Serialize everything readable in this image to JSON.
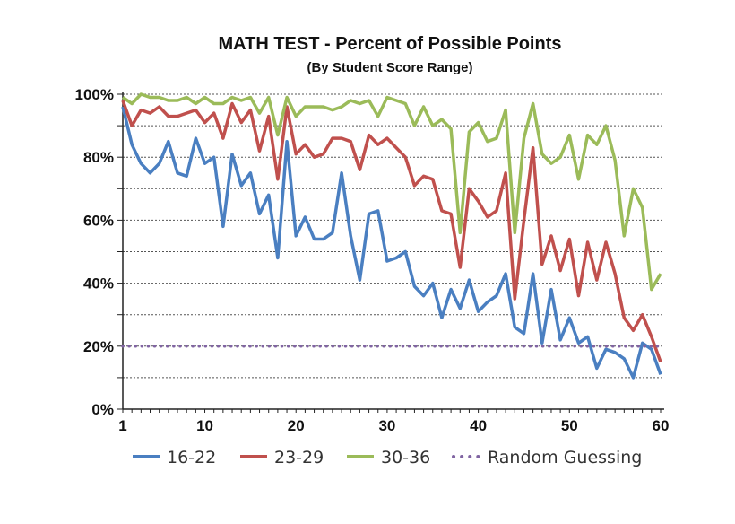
{
  "chart_data": {
    "type": "line",
    "title": "MATH TEST - Percent of Possible Points",
    "subtitle": "(By Student Score Range)",
    "xlabel": "",
    "ylabel": "",
    "xlim": [
      1,
      60
    ],
    "ylim": [
      0,
      100
    ],
    "grid": true,
    "legend_position": "bottom",
    "x_ticks": [
      1,
      10,
      20,
      30,
      40,
      50,
      60
    ],
    "y_ticks": [
      0,
      20,
      40,
      60,
      80,
      100
    ],
    "y_tick_labels": [
      "0%",
      "20%",
      "40%",
      "60%",
      "80%",
      "100%"
    ],
    "x": [
      1,
      2,
      3,
      4,
      5,
      6,
      7,
      8,
      9,
      10,
      11,
      12,
      13,
      14,
      15,
      16,
      17,
      18,
      19,
      20,
      21,
      22,
      23,
      24,
      25,
      26,
      27,
      28,
      29,
      30,
      31,
      32,
      33,
      34,
      35,
      36,
      37,
      38,
      39,
      40,
      41,
      42,
      43,
      44,
      45,
      46,
      47,
      48,
      49,
      50,
      51,
      52,
      53,
      54,
      55,
      56,
      57,
      58,
      59,
      60
    ],
    "series": [
      {
        "name": "16-22",
        "color": "#4a7fc1",
        "dotted": false,
        "values": [
          96,
          84,
          78,
          75,
          78,
          85,
          75,
          74,
          86,
          78,
          80,
          58,
          81,
          71,
          75,
          62,
          68,
          48,
          85,
          55,
          61,
          54,
          54,
          56,
          75,
          55,
          41,
          62,
          63,
          47,
          48,
          50,
          39,
          36,
          40,
          29,
          38,
          32,
          41,
          31,
          34,
          36,
          43,
          26,
          24,
          43,
          21,
          38,
          22,
          29,
          21,
          23,
          13,
          19,
          18,
          16,
          10,
          21,
          19,
          11
        ]
      },
      {
        "name": "23-29",
        "color": "#c0504d",
        "dotted": false,
        "values": [
          98,
          90,
          95,
          94,
          96,
          93,
          93,
          94,
          95,
          91,
          94,
          86,
          97,
          91,
          95,
          82,
          93,
          73,
          96,
          81,
          84,
          80,
          81,
          86,
          86,
          85,
          76,
          87,
          84,
          86,
          83,
          80,
          71,
          74,
          73,
          63,
          62,
          45,
          70,
          66,
          61,
          63,
          75,
          35,
          60,
          83,
          46,
          55,
          44,
          54,
          36,
          53,
          41,
          53,
          43,
          29,
          25,
          30,
          23,
          15
        ]
      },
      {
        "name": "30-36",
        "color": "#9bbb59",
        "dotted": false,
        "values": [
          99,
          97,
          100,
          99,
          99,
          98,
          98,
          99,
          97,
          99,
          97,
          97,
          99,
          98,
          99,
          94,
          99,
          87,
          99,
          93,
          96,
          96,
          96,
          95,
          96,
          98,
          97,
          98,
          93,
          99,
          98,
          97,
          90,
          96,
          90,
          92,
          89,
          56,
          88,
          91,
          85,
          86,
          95,
          56,
          86,
          97,
          81,
          78,
          80,
          87,
          73,
          87,
          84,
          90,
          79,
          55,
          70,
          64,
          38,
          43
        ]
      },
      {
        "name": "Random Guessing",
        "color": "#8064a2",
        "dotted": true,
        "values": [
          20,
          20,
          20,
          20,
          20,
          20,
          20,
          20,
          20,
          20,
          20,
          20,
          20,
          20,
          20,
          20,
          20,
          20,
          20,
          20,
          20,
          20,
          20,
          20,
          20,
          20,
          20,
          20,
          20,
          20,
          20,
          20,
          20,
          20,
          20,
          20,
          20,
          20,
          20,
          20,
          20,
          20,
          20,
          20,
          20,
          20,
          20,
          20,
          20,
          20,
          20,
          20,
          20,
          20,
          20,
          20,
          20,
          20,
          20,
          20
        ]
      }
    ]
  }
}
